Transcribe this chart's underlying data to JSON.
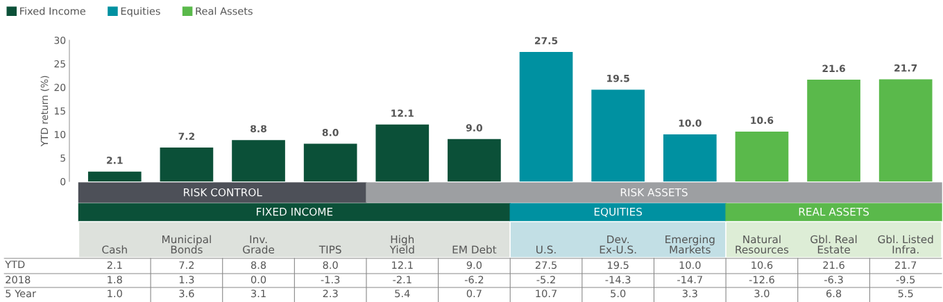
{
  "chart_data": {
    "type": "bar",
    "ylabel": "YTD return (%)",
    "categories": [
      "Cash",
      "Municipal\nBonds",
      "Inv.\nGrade",
      "TIPS",
      "High\nYield",
      "EM Debt",
      "U.S.",
      "Dev.\nEx-U.S.",
      "Emerging\nMarkets",
      "Natural\nResources",
      "Gbl. Real\nEstate",
      "Gbl. Listed\nInfra."
    ],
    "series": [
      {
        "name": "Fixed Income",
        "color": "#0b5038",
        "values": [
          2.1,
          7.2,
          8.8,
          8.0,
          12.1,
          9.0,
          null,
          null,
          null,
          null,
          null,
          null
        ],
        "value_labels": [
          "2.1",
          "7.2",
          "8.8",
          "8.0",
          "12.1",
          "9.0",
          null,
          null,
          null,
          null,
          null,
          null
        ]
      },
      {
        "name": "Equities",
        "color": "#0091a1",
        "values": [
          null,
          null,
          null,
          null,
          null,
          null,
          27.5,
          19.5,
          10.0,
          null,
          null,
          null
        ],
        "value_labels": [
          null,
          null,
          null,
          null,
          null,
          null,
          "27.5",
          "19.5",
          "10.0",
          null,
          null,
          null
        ]
      },
      {
        "name": "Real Assets",
        "color": "#5ab94b",
        "values": [
          null,
          null,
          null,
          null,
          null,
          null,
          null,
          null,
          null,
          10.6,
          21.6,
          21.7
        ],
        "value_labels": [
          null,
          null,
          null,
          null,
          null,
          null,
          null,
          null,
          null,
          "10.6",
          "21.6",
          "21.7"
        ]
      }
    ],
    "ylim": [
      0,
      30
    ],
    "yticks": [
      0,
      5,
      10,
      15,
      20,
      25,
      30
    ],
    "grid": false,
    "legend": "top left",
    "annotations": [
      "RISK CONTROL",
      "RISK ASSETS",
      "FIXED INCOME",
      "EQUITIES",
      "REAL ASSETS",
      "YTD",
      "2018",
      "1.8",
      "1.3",
      "0.0",
      "-1.3",
      "-2.1",
      "-6.2",
      "-5.2",
      "-14.3",
      "-14.7",
      "-12.6",
      "-6.3",
      "-9.5",
      "5 Year",
      "1.0",
      "3.6",
      "3.1",
      "2.3",
      "5.4",
      "0.7",
      "10.7",
      "5.0",
      "3.3",
      "3.0",
      "6.8",
      "5.5"
    ]
  }
}
